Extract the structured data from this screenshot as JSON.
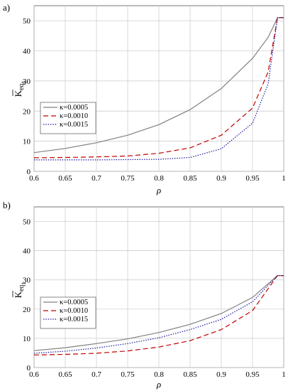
{
  "panels": [
    {
      "label": "a)",
      "xlabel": "ρ",
      "ylabel_main": "K",
      "ylabel_sub": "eq",
      "ylabel_subsub": "1",
      "xlim": [
        0.6,
        1.0
      ],
      "ylim": [
        0,
        55
      ],
      "xticks": [
        "0.6",
        "0.65",
        "0.7",
        "0.75",
        "0.8",
        "0.85",
        "0.9",
        "0.95",
        "1"
      ],
      "yticks": [
        "0",
        "10",
        "20",
        "30",
        "40",
        "50"
      ]
    },
    {
      "label": "b)",
      "xlabel": "ρ",
      "ylabel_main": "K",
      "ylabel_sub": "eq",
      "ylabel_subsub": "1",
      "xlim": [
        0.6,
        1.0
      ],
      "ylim": [
        0,
        55
      ],
      "xticks": [
        "0.6",
        "0.65",
        "0.7",
        "0.75",
        "0.8",
        "0.85",
        "0.9",
        "0.95",
        "1"
      ],
      "yticks": [
        "0",
        "10",
        "20",
        "30",
        "40",
        "50"
      ]
    }
  ],
  "legend": [
    {
      "label": "κ=0.0005",
      "color": "#808080",
      "dash": "solid"
    },
    {
      "label": "κ=0.0010",
      "color": "#c00000",
      "dash": "dashed"
    },
    {
      "label": "κ=0.0015",
      "color": "#1a1aa0",
      "dash": "dotted"
    }
  ],
  "chart_data": [
    {
      "type": "line",
      "title": "",
      "xlabel": "ρ",
      "ylabel": "K̄eq1",
      "xlim": [
        0.6,
        1.0
      ],
      "ylim": [
        0,
        55
      ],
      "grid": true,
      "legend_position": "center-left",
      "x": [
        0.6,
        0.65,
        0.7,
        0.75,
        0.8,
        0.85,
        0.9,
        0.95,
        0.975,
        0.99,
        1.0
      ],
      "series": [
        {
          "name": "κ=0.0005",
          "values": [
            6.2,
            7.6,
            9.5,
            12.0,
            15.5,
            20.5,
            27.5,
            37.5,
            44.5,
            51.0,
            51.0
          ]
        },
        {
          "name": "κ=0.0010",
          "values": [
            4.5,
            4.6,
            4.8,
            5.1,
            6.0,
            7.8,
            12.0,
            21.0,
            33.0,
            51.0,
            51.0
          ]
        },
        {
          "name": "κ=0.0015",
          "values": [
            3.8,
            3.8,
            3.8,
            3.9,
            4.0,
            4.6,
            7.5,
            16.0,
            29.0,
            51.0,
            51.0
          ]
        }
      ]
    },
    {
      "type": "line",
      "title": "",
      "xlabel": "ρ",
      "ylabel": "K̄eq1",
      "xlim": [
        0.6,
        1.0
      ],
      "ylim": [
        0,
        55
      ],
      "grid": true,
      "legend_position": "bottom-left",
      "x": [
        0.6,
        0.65,
        0.7,
        0.75,
        0.8,
        0.85,
        0.9,
        0.95,
        0.99,
        1.0
      ],
      "series": [
        {
          "name": "κ=0.0005",
          "values": [
            5.8,
            6.8,
            8.2,
            9.8,
            12.0,
            14.8,
            18.5,
            24.0,
            31.5,
            31.5
          ]
        },
        {
          "name": "κ=0.0010",
          "values": [
            4.3,
            4.5,
            4.9,
            5.7,
            7.0,
            9.2,
            13.0,
            19.5,
            31.5,
            31.5
          ]
        },
        {
          "name": "κ=0.0015",
          "values": [
            4.9,
            5.6,
            6.7,
            8.2,
            10.2,
            13.0,
            16.5,
            22.5,
            31.5,
            31.5
          ]
        }
      ]
    }
  ]
}
